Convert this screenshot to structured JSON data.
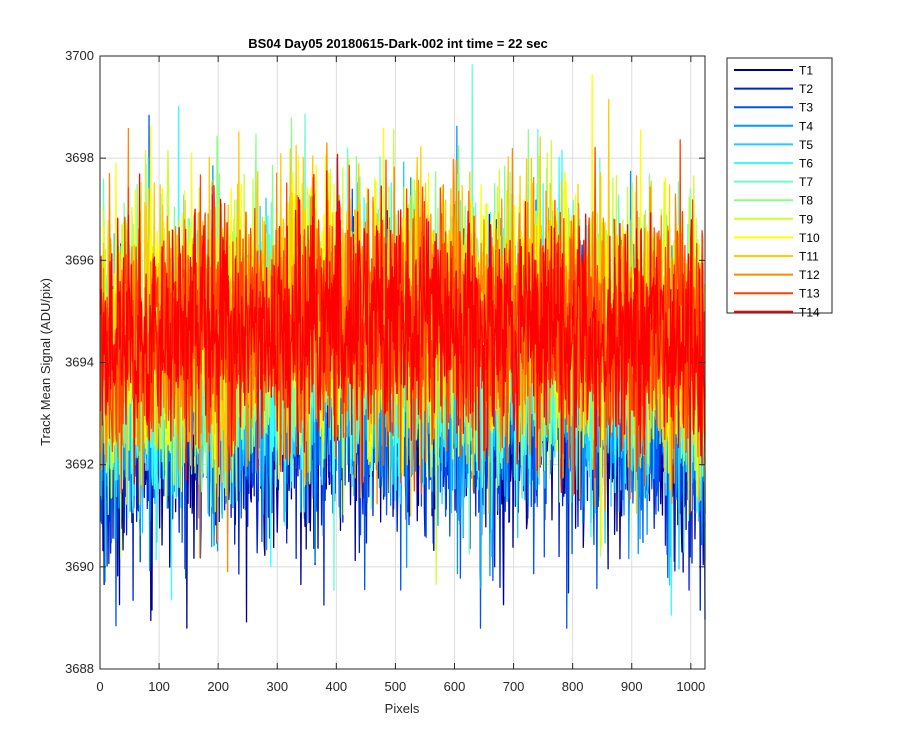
{
  "chart_data": {
    "type": "line",
    "title": "BS04 Day05 20180615-Dark-002 int time = 22 sec",
    "xlabel": "Pixels",
    "ylabel": "Track Mean Signal (ADU/pix)",
    "xlim": [
      0,
      1024
    ],
    "ylim": [
      3688,
      3700
    ],
    "xticks": [
      0,
      100,
      200,
      300,
      400,
      500,
      600,
      700,
      800,
      900,
      1000
    ],
    "yticks": [
      3688,
      3690,
      3692,
      3694,
      3696,
      3698,
      3700
    ],
    "grid": true,
    "legend_position": "outside-top-right",
    "series_profile": {
      "x": [
        0,
        50,
        100,
        150,
        200,
        250,
        300,
        350,
        400,
        450,
        500,
        550,
        600,
        650,
        700,
        750,
        800,
        850,
        900,
        950,
        1000,
        1024
      ],
      "mean": [
        3694.3,
        3694.5,
        3694.6,
        3694.7,
        3694.8,
        3694.8,
        3694.8,
        3694.9,
        3695.0,
        3695.0,
        3695.0,
        3695.0,
        3695.0,
        3694.9,
        3694.9,
        3694.9,
        3694.8,
        3694.8,
        3694.7,
        3694.6,
        3694.5,
        3694.0
      ]
    },
    "series": [
      {
        "name": "T1",
        "color": "#00008f",
        "offset": -1.9,
        "noise": 1.3
      },
      {
        "name": "T2",
        "color": "#0022cc",
        "offset": -1.7,
        "noise": 1.3
      },
      {
        "name": "T3",
        "color": "#0055ee",
        "offset": -1.5,
        "noise": 1.3
      },
      {
        "name": "T4",
        "color": "#0099ff",
        "offset": -1.3,
        "noise": 1.3
      },
      {
        "name": "T5",
        "color": "#22ccff",
        "offset": -1.0,
        "noise": 1.3
      },
      {
        "name": "T6",
        "color": "#33ffff",
        "offset": -0.7,
        "noise": 1.3
      },
      {
        "name": "T7",
        "color": "#66ffcc",
        "offset": -0.4,
        "noise": 1.3
      },
      {
        "name": "T8",
        "color": "#88ff88",
        "offset": -0.2,
        "noise": 1.3
      },
      {
        "name": "T9",
        "color": "#ccff33",
        "offset": 0.0,
        "noise": 1.3
      },
      {
        "name": "T10",
        "color": "#ffff00",
        "offset": 0.0,
        "noise": 1.3
      },
      {
        "name": "T11",
        "color": "#ffcc00",
        "offset": 0.0,
        "noise": 1.3
      },
      {
        "name": "T12",
        "color": "#ff8800",
        "offset": -0.1,
        "noise": 1.25
      },
      {
        "name": "T13",
        "color": "#ff4400",
        "offset": -0.2,
        "noise": 1.2
      },
      {
        "name": "T14",
        "color": "#ff0000",
        "offset": -0.2,
        "noise": 1.1
      }
    ]
  }
}
